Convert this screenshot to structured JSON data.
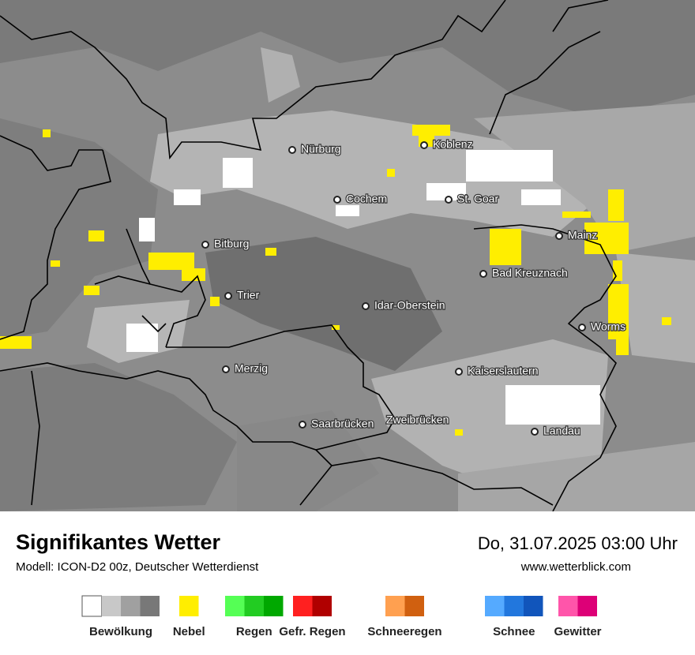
{
  "header": {
    "title": "Signifikantes Wetter",
    "subtitle": "Modell: ICON-D2 00z, Deutscher Wetterdienst",
    "datetime": "Do, 31.07.2025 03:00 Uhr",
    "website": "www.wetterblick.com"
  },
  "cities": [
    "Nürburg",
    "Koblenz",
    "Cochem",
    "St. Goar",
    "Mainz",
    "Bitburg",
    "Bad Kreuznach",
    "Trier",
    "Idar-Oberstein",
    "Worms",
    "Merzig",
    "Kaiserslautern",
    "Saarbrücken",
    "Zweibrücken",
    "Landau"
  ],
  "legend": [
    {
      "label": "Bewölkung",
      "colors": [
        "#ffffff",
        "#c8c8c8",
        "#a0a0a0",
        "#787878"
      ]
    },
    {
      "label": "Nebel",
      "colors": [
        "#ffee00"
      ]
    },
    {
      "label": "Regen",
      "colors": [
        "#55ff55",
        "#22cc22",
        "#00a800"
      ]
    },
    {
      "label": "Gefr. Regen",
      "colors": [
        "#ff2020",
        "#b00000"
      ]
    },
    {
      "label": "Schneeregen",
      "colors": [
        "#ffa050",
        "#d06010"
      ]
    },
    {
      "label": "Schnee",
      "colors": [
        "#55aaff",
        "#2277dd",
        "#1155bb"
      ]
    },
    {
      "label": "Gewitter",
      "colors": [
        "#ff55aa",
        "#dd0077"
      ]
    }
  ]
}
